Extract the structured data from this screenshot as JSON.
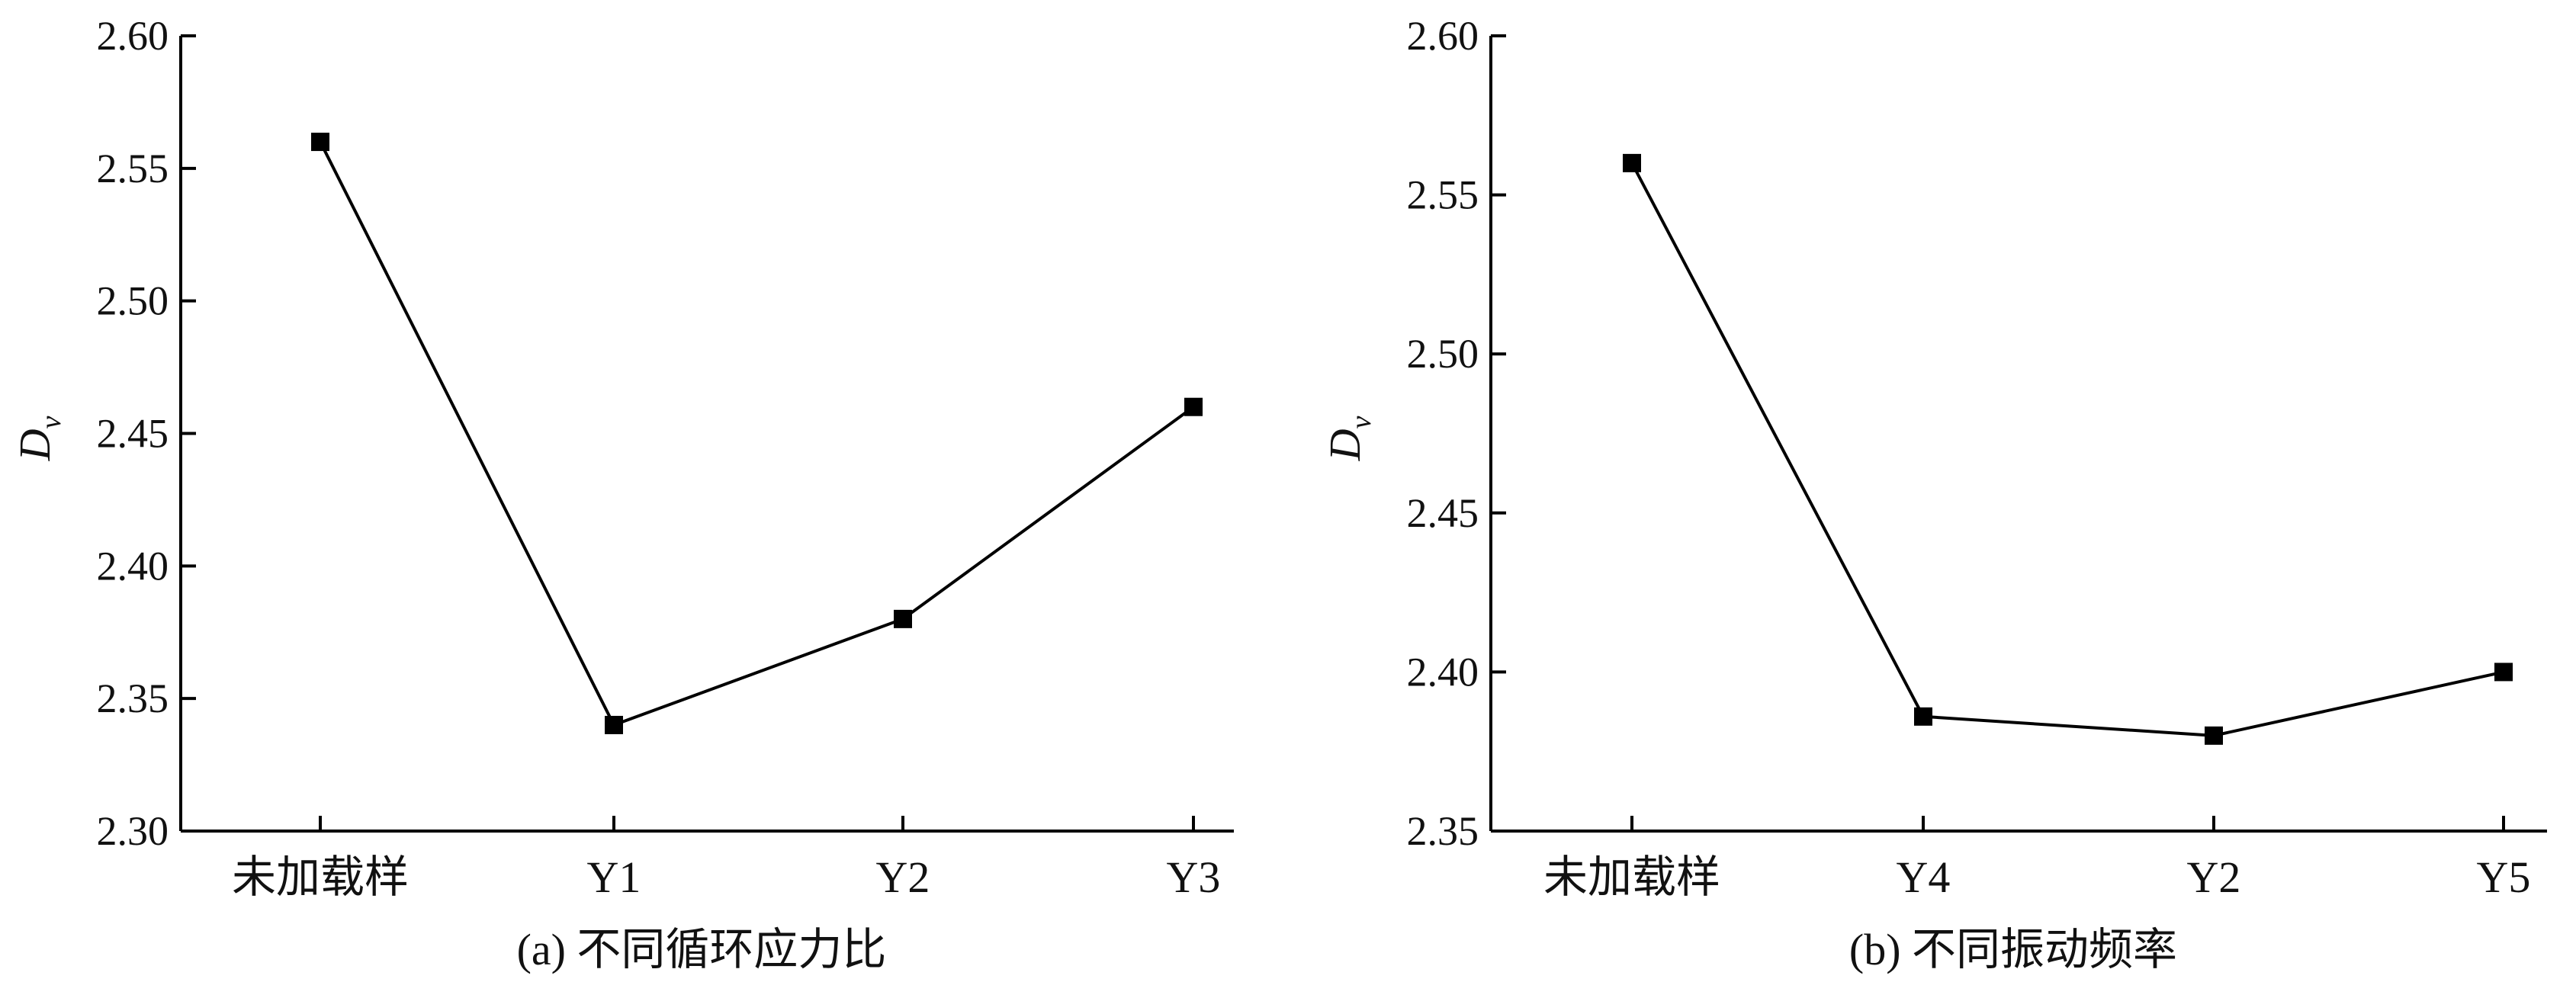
{
  "chart_data": [
    {
      "type": "line",
      "caption": "(a) 不同循环应力比",
      "ylabel": "D",
      "ylabel_sub": "v",
      "categories": [
        "未加载样",
        "Y1",
        "Y2",
        "Y3"
      ],
      "values": [
        2.56,
        2.34,
        2.38,
        2.46
      ],
      "ylim": [
        2.3,
        2.6
      ],
      "yticks": [
        "2.30",
        "2.35",
        "2.40",
        "2.45",
        "2.50",
        "2.55",
        "2.60"
      ],
      "grid": false,
      "marker": "square",
      "color": "#000000"
    },
    {
      "type": "line",
      "caption": "(b) 不同振动频率",
      "ylabel": "D",
      "ylabel_sub": "v",
      "categories": [
        "未加载样",
        "Y4",
        "Y2",
        "Y5"
      ],
      "values": [
        2.56,
        2.386,
        2.38,
        2.4
      ],
      "ylim": [
        2.35,
        2.6
      ],
      "yticks": [
        "2.35",
        "2.40",
        "2.45",
        "2.50",
        "2.55",
        "2.60"
      ],
      "grid": false,
      "marker": "square",
      "color": "#000000"
    }
  ]
}
